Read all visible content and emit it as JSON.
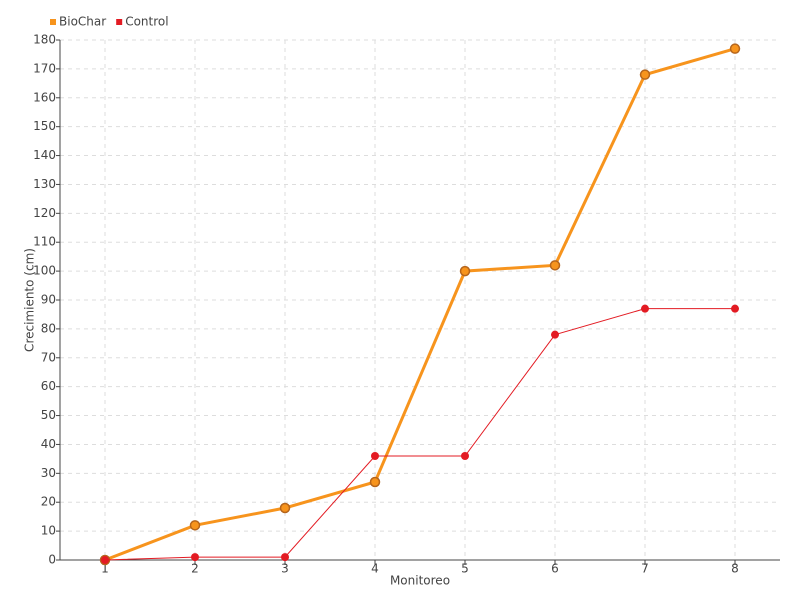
{
  "chart_data": {
    "type": "line",
    "x_label": "Monitoreo",
    "y_label": "Crecimiento (cm)",
    "categories": [
      "1",
      "2",
      "3",
      "4",
      "5",
      "6",
      "7",
      "8"
    ],
    "series": [
      {
        "name": "BioChar",
        "color": "#f7941d",
        "values": [
          0,
          12,
          18,
          27,
          100,
          102,
          168,
          177
        ]
      },
      {
        "name": "Control",
        "color": "#e31b23",
        "values": [
          0,
          1,
          1,
          36,
          36,
          78,
          87,
          87
        ]
      }
    ],
    "ylim": [
      0,
      180
    ],
    "yticks": [
      0,
      10,
      20,
      30,
      40,
      50,
      60,
      70,
      80,
      90,
      100,
      110,
      120,
      130,
      140,
      150,
      160,
      170,
      180
    ],
    "grid": true,
    "legend": "top-left"
  }
}
